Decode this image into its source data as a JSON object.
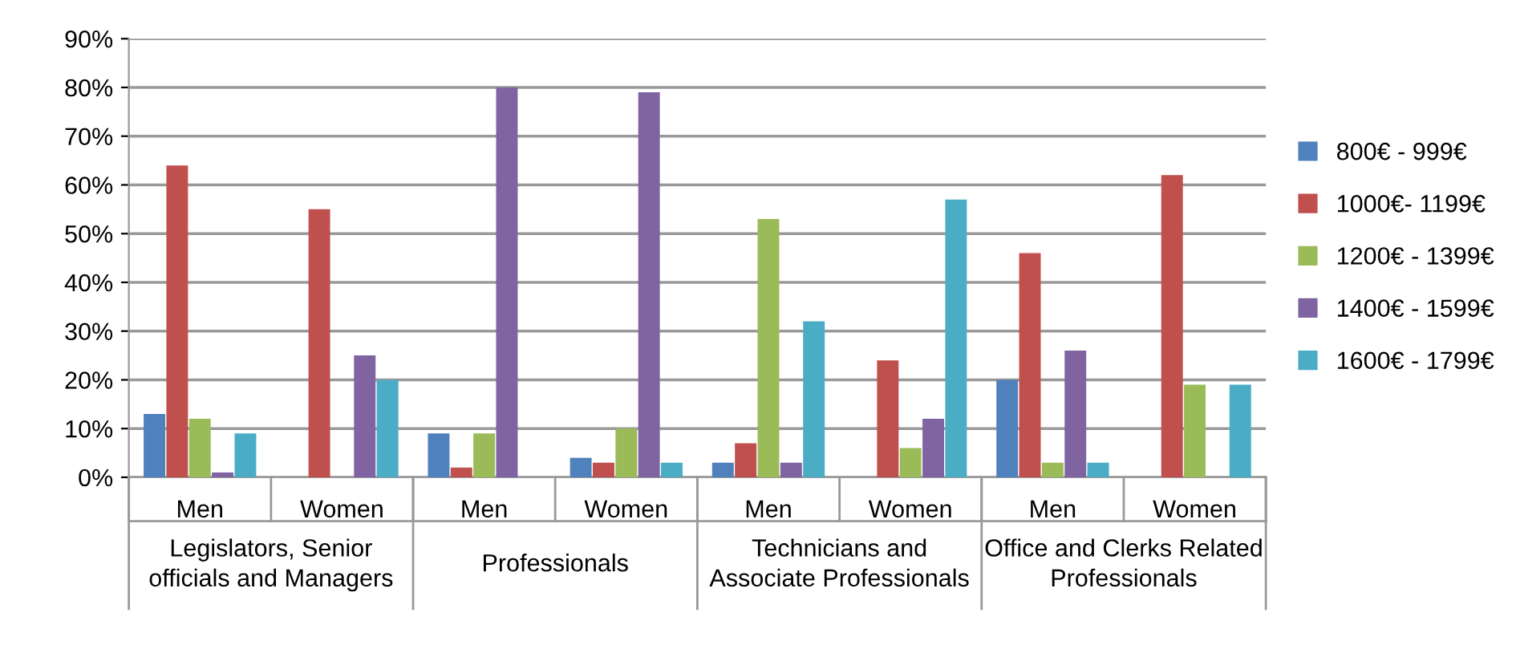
{
  "chart_data": {
    "type": "bar",
    "categories": [
      "Men",
      "Women",
      "Men",
      "Women",
      "Men",
      "Women",
      "Men",
      "Women"
    ],
    "series": [
      {
        "name": "800€ - 999€",
        "color": "#4f81bd",
        "values": [
          13,
          0,
          9,
          4,
          3,
          0,
          20,
          0
        ]
      },
      {
        "name": "1000€- 1199€",
        "color": "#c0504d",
        "values": [
          64,
          55,
          2,
          3,
          7,
          24,
          46,
          62
        ]
      },
      {
        "name": "1200€ - 1399€",
        "color": "#9bbb59",
        "values": [
          12,
          0,
          9,
          10,
          53,
          6,
          3,
          19
        ]
      },
      {
        "name": "1400€ - 1599€",
        "color": "#8064a2",
        "values": [
          1,
          25,
          80,
          79,
          3,
          12,
          26,
          0
        ]
      },
      {
        "name": "1600€ - 1799€",
        "color": "#4bacc6",
        "values": [
          9,
          20,
          0,
          3,
          32,
          57,
          3,
          19
        ]
      }
    ],
    "annotations": [
      "Legislators, Senior\nofficials and Managers",
      "Professionals",
      "Technicians and\nAssociate Professionals",
      "Office and Clerks Related\nProfessionals"
    ],
    "ylim": [
      0,
      90
    ],
    "yticks": [
      {
        "value": 0,
        "label": "0%"
      },
      {
        "value": 10,
        "label": "10%"
      },
      {
        "value": 20,
        "label": "20%"
      },
      {
        "value": 30,
        "label": "30%"
      },
      {
        "value": 40,
        "label": "40%"
      },
      {
        "value": 50,
        "label": "50%"
      },
      {
        "value": 60,
        "label": "60%"
      },
      {
        "value": 70,
        "label": "70%"
      },
      {
        "value": 80,
        "label": "80%"
      },
      {
        "value": 90,
        "label": "90%"
      }
    ],
    "grid": "y",
    "legend": "right"
  }
}
